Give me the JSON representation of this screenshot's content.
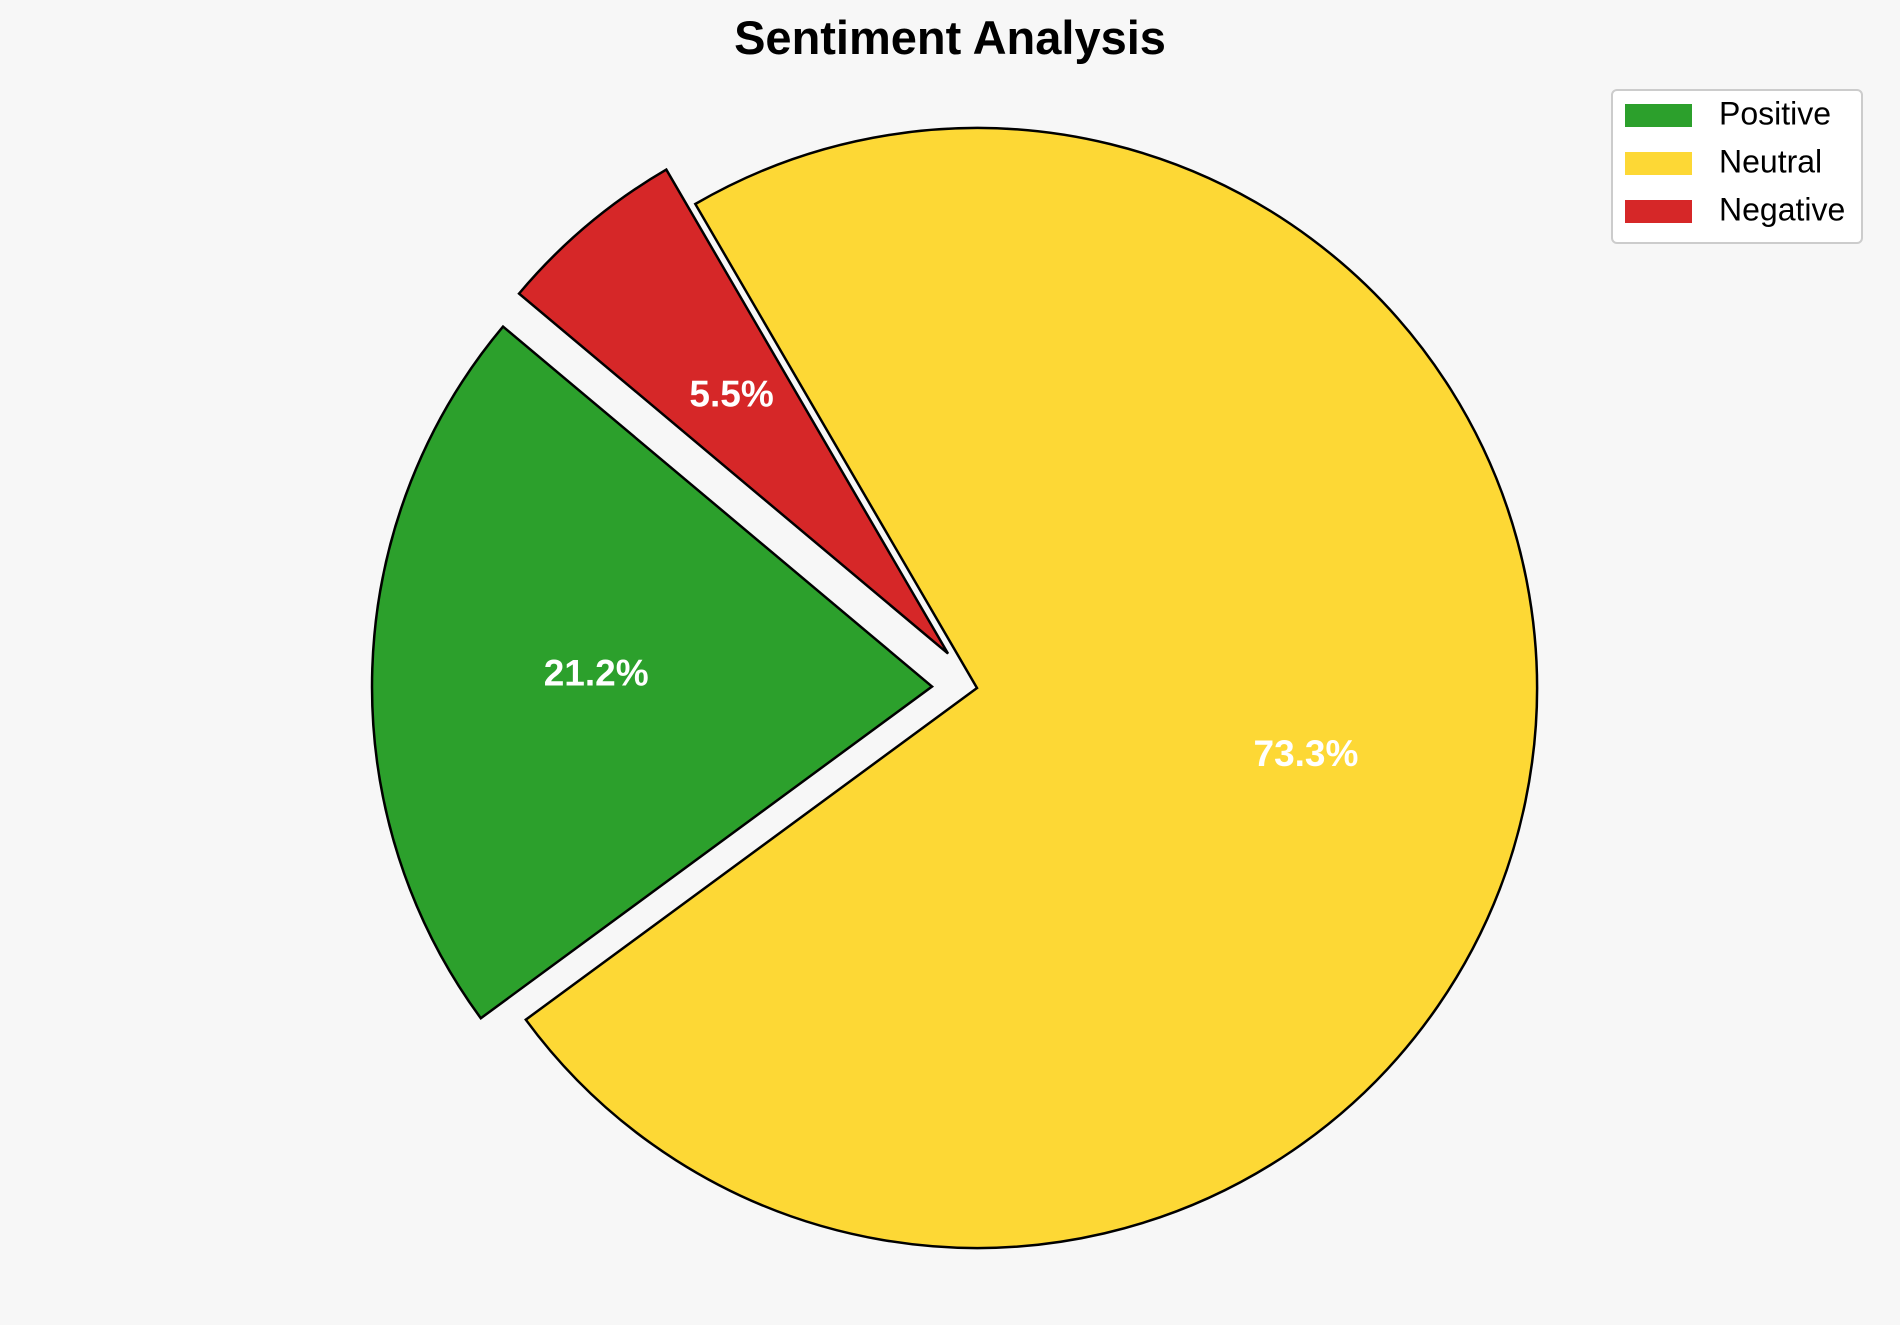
{
  "chart_data": {
    "type": "pie",
    "title": "Sentiment Analysis",
    "slices": [
      {
        "label": "Positive",
        "value": 21.2,
        "pct_label": "21.2%",
        "color": "#2ca02c",
        "exploded": true
      },
      {
        "label": "Neutral",
        "value": 73.3,
        "pct_label": "73.3%",
        "color": "#fdd835",
        "exploded": false
      },
      {
        "label": "Negative",
        "value": 5.5,
        "pct_label": "5.5%",
        "color": "#d62728",
        "exploded": true
      }
    ],
    "legend": {
      "placement": "top-right",
      "entries": [
        "Positive",
        "Neutral",
        "Negative"
      ]
    },
    "background_color": "#f7f7f7",
    "edge_color": "#000000",
    "label_color": "#ffffff"
  }
}
